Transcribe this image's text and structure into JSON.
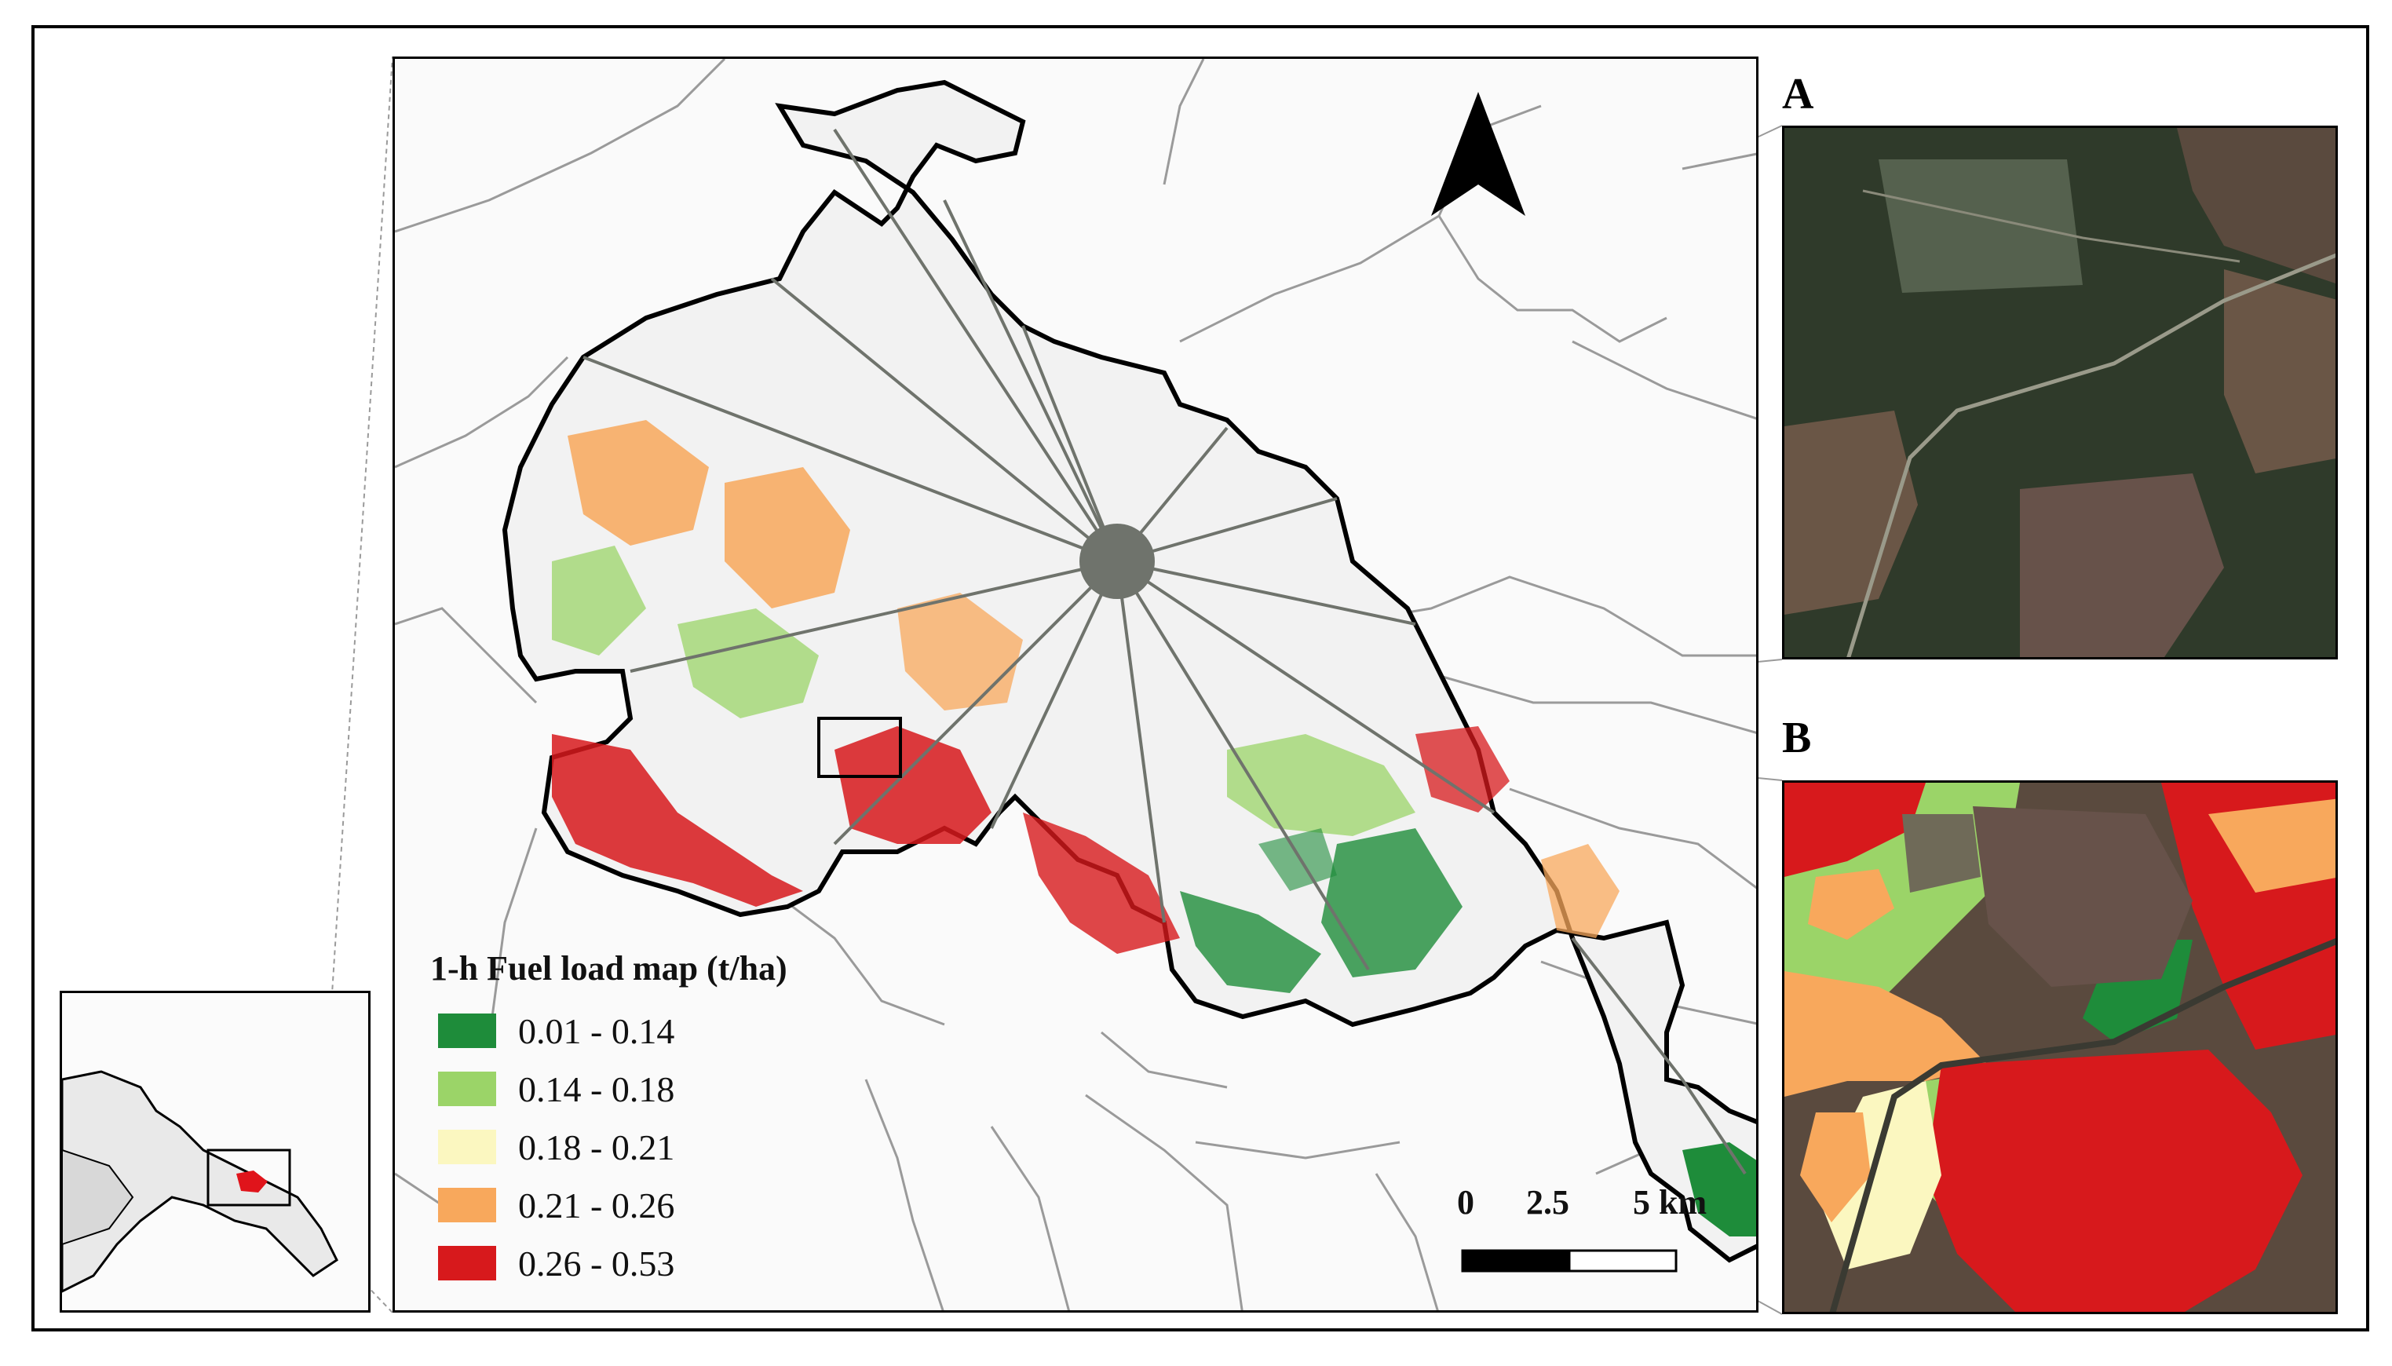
{
  "figure": {
    "panel_a_letter": "A",
    "panel_b_letter": "B"
  },
  "legend": {
    "title": "1-h Fuel load map (t/ha)",
    "classes": [
      {
        "label": "0.01 - 0.14",
        "color": "#1e8c3a"
      },
      {
        "label": "0.14 - 0.18",
        "color": "#9bd468"
      },
      {
        "label": "0.18 - 0.21",
        "color": "#fbf7c0"
      },
      {
        "label": "0.21 - 0.26",
        "color": "#f8a85c"
      },
      {
        "label": "0.26 - 0.53",
        "color": "#d7191c"
      }
    ]
  },
  "scalebar": {
    "tick_labels": [
      "0",
      "2.5",
      "5 km"
    ]
  },
  "map": {
    "north_arrow": "north-arrow-icon",
    "road_color": "#6f736c",
    "boundary_color": "#000000",
    "municipality_line_color": "#9a9a9a",
    "inset_highlight_color": "#e0141b"
  }
}
